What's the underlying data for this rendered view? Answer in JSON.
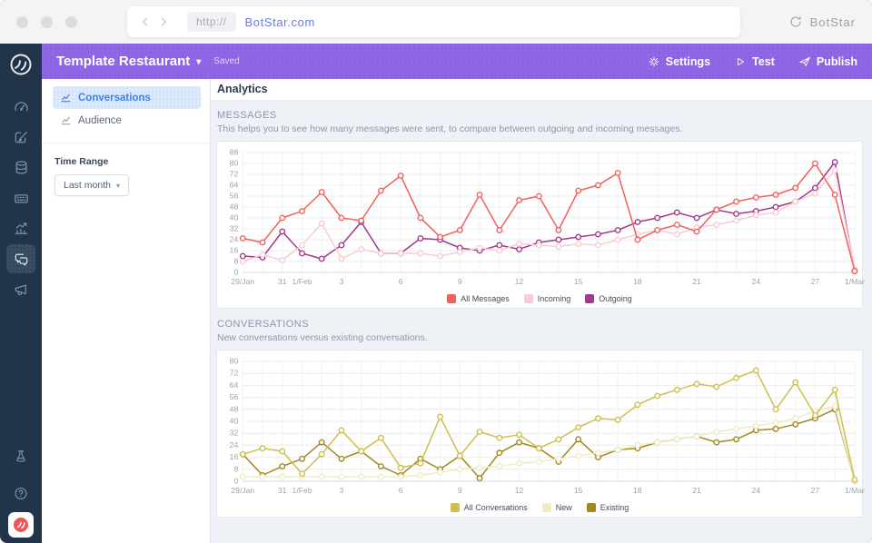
{
  "browser": {
    "scheme": "http://",
    "url": "BotStar.com",
    "brand": "BotStar",
    "icons": {
      "back": "chevron-left-icon",
      "forward": "chevron-right-icon",
      "brand": "refresh-icon"
    }
  },
  "topbar": {
    "title": "Template Restaurant",
    "caret": "▾",
    "saved_label": "Saved",
    "actions": [
      {
        "label": "Settings",
        "icon": "gear-icon"
      },
      {
        "label": "Test",
        "icon": "play-icon"
      },
      {
        "label": "Publish",
        "icon": "paper-plane-icon"
      }
    ]
  },
  "rail": {
    "logo_icon": "botstar-swirl-icon",
    "items": [
      {
        "icon": "gauge-icon",
        "active": false
      },
      {
        "icon": "compose-icon",
        "active": false
      },
      {
        "icon": "database-icon",
        "active": false
      },
      {
        "icon": "keyboard-icon",
        "active": false
      },
      {
        "icon": "growth-chart-icon",
        "active": false
      },
      {
        "icon": "chat-bubbles-icon",
        "active": true
      },
      {
        "icon": "megaphone-icon",
        "active": false
      }
    ],
    "bottom_items": [
      {
        "icon": "flask-icon"
      },
      {
        "icon": "help-icon"
      }
    ],
    "brand_badge_icon": "botstar-red-logo-icon"
  },
  "sidebar": {
    "items": [
      {
        "label": "Conversations",
        "icon": "mini-chart-icon",
        "active": true
      },
      {
        "label": "Audience",
        "icon": "mini-chart-icon",
        "active": false
      }
    ],
    "time_range_label": "Time Range",
    "time_range_value": "Last month",
    "caret": "▾"
  },
  "page": {
    "title": "Analytics"
  },
  "chart_data": [
    {
      "type": "line",
      "title": "MESSAGES",
      "subtitle": "This helps you to see how many messages were sent, to compare between outgoing and incoming messages.",
      "categories": [
        "29/Jan",
        "30",
        "31",
        "1/Feb",
        "2",
        "3",
        "4",
        "5",
        "6",
        "7",
        "8",
        "9",
        "10",
        "11",
        "12",
        "13",
        "14",
        "15",
        "16",
        "17",
        "18",
        "19",
        "20",
        "21",
        "22",
        "23",
        "24",
        "25",
        "26",
        "27",
        "28",
        "1/Mar"
      ],
      "label_indices": [
        0,
        2,
        3,
        5,
        8,
        11,
        14,
        17,
        20,
        23,
        26,
        29,
        31
      ],
      "ylim": [
        0,
        88
      ],
      "ytick": 8,
      "grid": true,
      "legend_position": "bottom",
      "series": [
        {
          "name": "All Messages",
          "color": "#f2615c",
          "values": [
            25,
            22,
            40,
            45,
            59,
            40,
            38,
            60,
            71,
            40,
            26,
            31,
            57,
            31,
            53,
            56,
            31,
            60,
            64,
            73,
            24,
            31,
            35,
            30,
            46,
            52,
            55,
            57,
            62,
            80,
            57,
            1
          ]
        },
        {
          "name": "Incoming",
          "color": "#f7ccd4",
          "values": [
            8,
            13,
            9,
            20,
            36,
            10,
            17,
            14,
            14,
            14,
            12,
            15,
            18,
            16,
            21,
            20,
            19,
            21,
            20,
            24,
            28,
            31,
            28,
            33,
            35,
            38,
            42,
            44,
            52,
            58,
            75,
            2
          ]
        },
        {
          "name": "Outgoing",
          "color": "#a03a8c",
          "values": [
            12,
            11,
            30,
            14,
            10,
            20,
            37,
            14,
            14,
            25,
            24,
            18,
            16,
            20,
            17,
            22,
            24,
            26,
            28,
            31,
            37,
            40,
            44,
            40,
            46,
            43,
            45,
            48,
            52,
            62,
            81,
            1
          ]
        }
      ]
    },
    {
      "type": "line",
      "title": "CONVERSATIONS",
      "subtitle": "New conversations versus existing conversations.",
      "categories": [
        "29/Jan",
        "30",
        "31",
        "1/Feb",
        "2",
        "3",
        "4",
        "5",
        "6",
        "7",
        "8",
        "9",
        "10",
        "11",
        "12",
        "13",
        "14",
        "15",
        "16",
        "17",
        "18",
        "19",
        "20",
        "21",
        "22",
        "23",
        "24",
        "25",
        "26",
        "27",
        "28",
        "1/Mar"
      ],
      "label_indices": [
        0,
        2,
        3,
        5,
        8,
        11,
        14,
        17,
        20,
        23,
        26,
        29,
        31
      ],
      "ylim": [
        0,
        80
      ],
      "ytick": 8,
      "grid": true,
      "legend_position": "bottom",
      "series": [
        {
          "name": "All Conversations",
          "color": "#cfbf4d",
          "values": [
            18,
            22,
            20,
            5,
            18,
            34,
            20,
            29,
            9,
            12,
            43,
            17,
            33,
            29,
            31,
            22,
            28,
            36,
            42,
            41,
            51,
            57,
            61,
            65,
            63,
            69,
            74,
            48,
            66,
            44,
            61,
            1
          ]
        },
        {
          "name": "New",
          "color": "#f1ebc4",
          "values": [
            3,
            3,
            3,
            3,
            3,
            3,
            3,
            3,
            3,
            4,
            6,
            8,
            9,
            10,
            12,
            13,
            15,
            17,
            19,
            21,
            24,
            26,
            28,
            30,
            33,
            35,
            37,
            39,
            42,
            47,
            50,
            0
          ]
        },
        {
          "name": "Existing",
          "color": "#a3871f",
          "values": [
            18,
            4,
            10,
            15,
            26,
            15,
            20,
            10,
            4,
            15,
            8,
            17,
            2,
            19,
            26,
            22,
            13,
            28,
            16,
            21,
            22,
            26,
            28,
            30,
            26,
            28,
            34,
            35,
            38,
            42,
            48,
            0
          ]
        }
      ]
    }
  ]
}
